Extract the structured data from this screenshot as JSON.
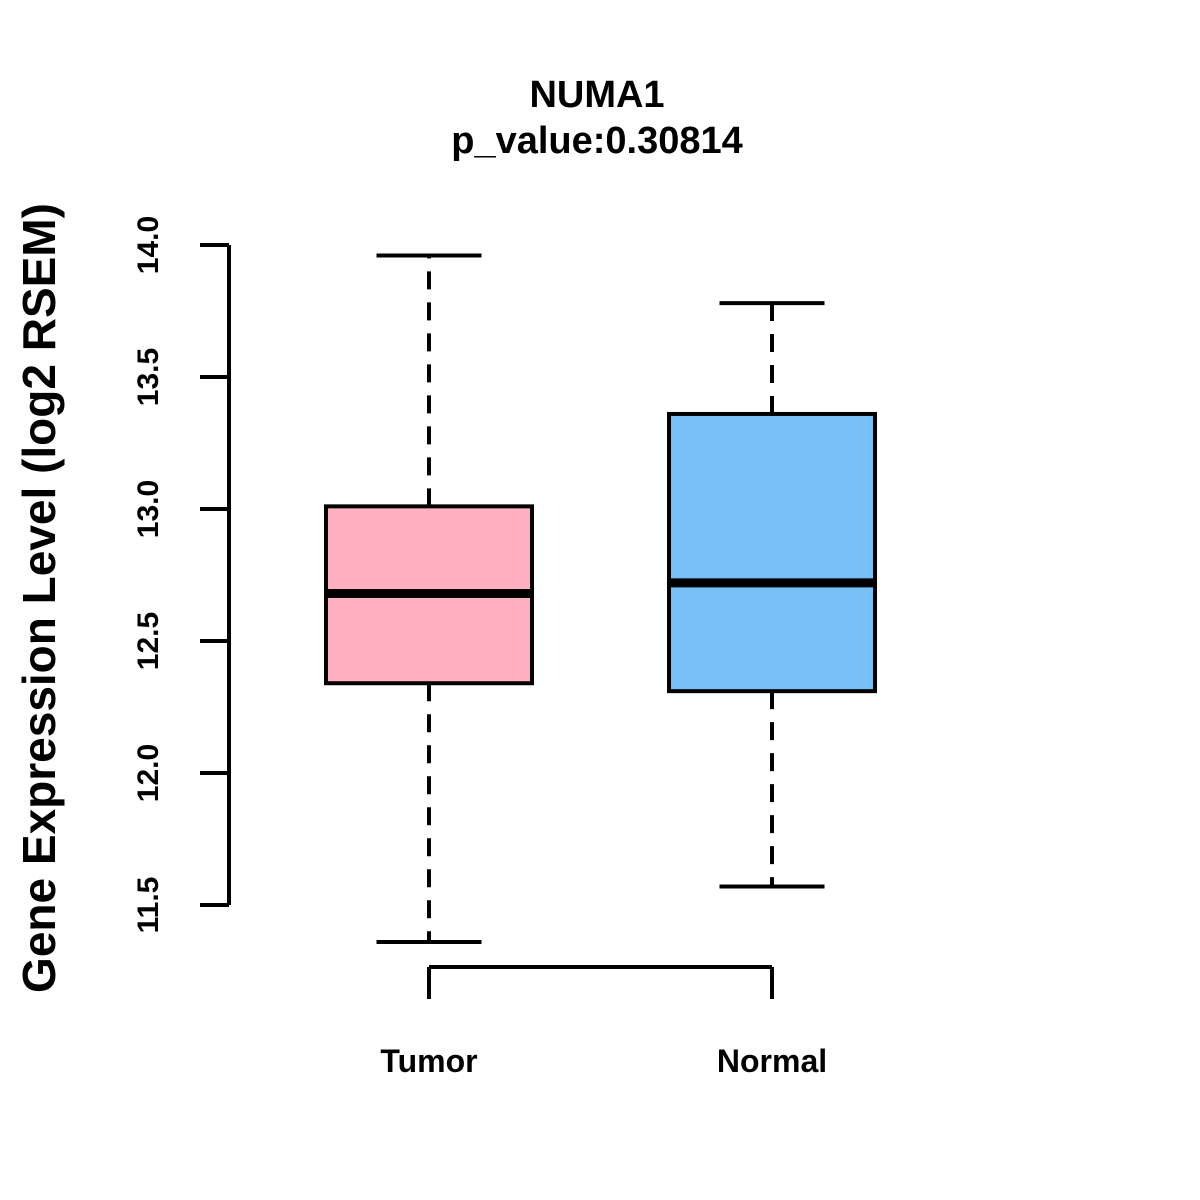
{
  "figure": {
    "title": "NUMA1",
    "subtitle": "p_value:0.30814"
  },
  "chart_data": {
    "type": "boxplot",
    "title": "NUMA1",
    "subtitle": "p_value:0.30814",
    "ylabel": "Gene Expression Level (log2 RSEM)",
    "categories": [
      "Tumor",
      "Normal"
    ],
    "series": [
      {
        "name": "Tumor",
        "box_fill": "#FFB0C0",
        "whisker_low": 11.36,
        "q1": 12.34,
        "median": 12.68,
        "q3": 13.01,
        "whisker_high": 13.96
      },
      {
        "name": "Normal",
        "box_fill": "#76BFF7",
        "whisker_low": 11.57,
        "q1": 12.31,
        "median": 12.72,
        "q3": 13.36,
        "whisker_high": 13.78
      }
    ],
    "ylim": [
      11.5,
      14.0
    ],
    "yticks": [
      11.5,
      12.0,
      12.5,
      13.0,
      13.5,
      14.0
    ],
    "ytick_labels": [
      "11.5",
      "12.0",
      "12.5",
      "13.0",
      "13.5",
      "14.0"
    ],
    "grid": false,
    "legend": "none",
    "axis_color": "#000000",
    "box_border_color": "#000000",
    "median_color": "#000000",
    "background_color": "#ffffff"
  }
}
